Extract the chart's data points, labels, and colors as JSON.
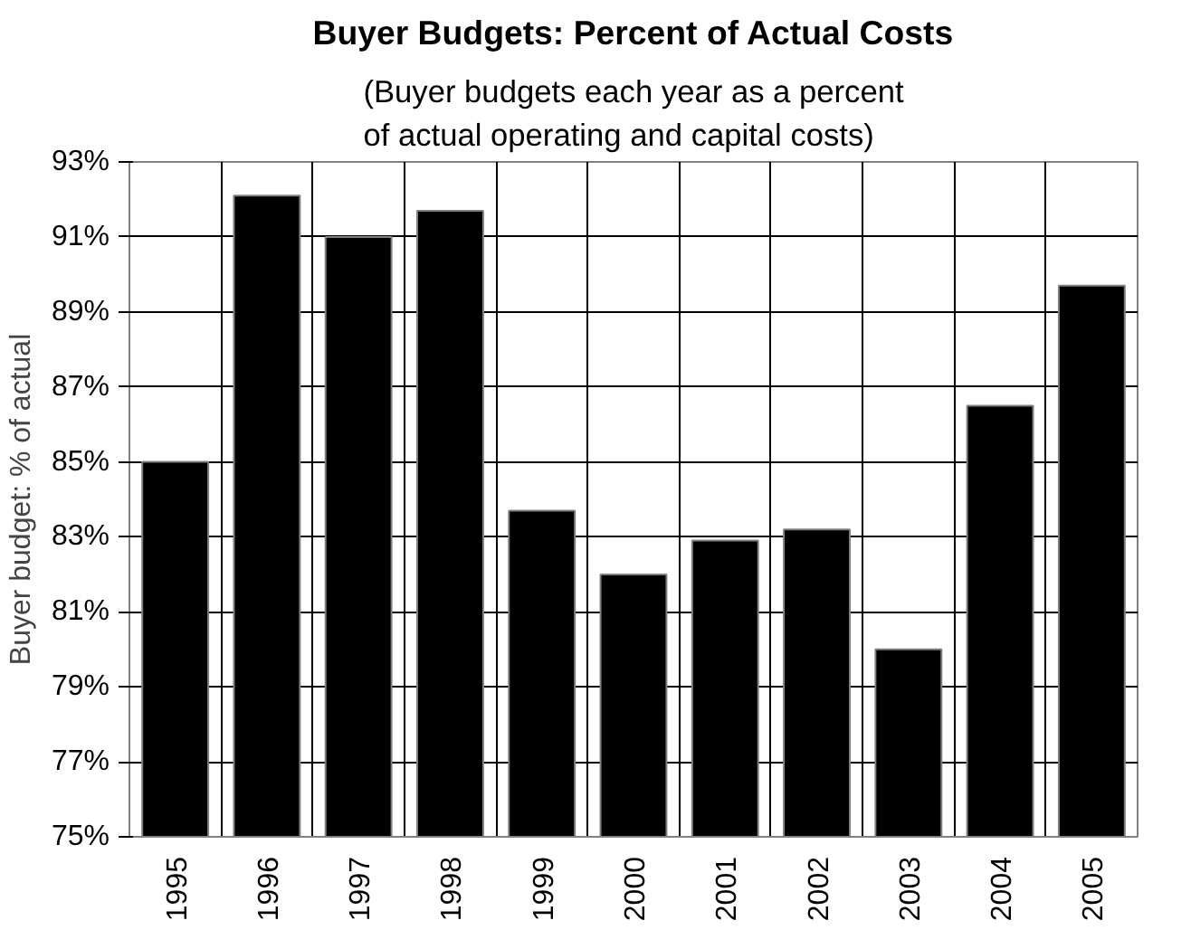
{
  "chart_data": {
    "type": "bar",
    "title": "Buyer Budgets: Percent of Actual Costs",
    "subtitle": "(Buyer budgets each year as a percent\nof actual operating and capital costs)",
    "ylabel": "Buyer budget: % of actual",
    "categories": [
      "1995",
      "1996",
      "1997",
      "1998",
      "1999",
      "2000",
      "2001",
      "2002",
      "2003",
      "2004",
      "2005"
    ],
    "values": [
      85.0,
      92.1,
      91.0,
      91.7,
      83.7,
      82.0,
      82.9,
      83.2,
      80.0,
      86.5,
      89.7
    ],
    "color": "#000000",
    "ylim": [
      75,
      93
    ],
    "yticks": [
      {
        "value": 75,
        "label": "75%"
      },
      {
        "value": 77,
        "label": "77%"
      },
      {
        "value": 79,
        "label": "79%"
      },
      {
        "value": 81,
        "label": "81%"
      },
      {
        "value": 83,
        "label": "83%"
      },
      {
        "value": 85,
        "label": "85%"
      },
      {
        "value": 87,
        "label": "87%"
      },
      {
        "value": 89,
        "label": "89%"
      },
      {
        "value": 91,
        "label": "91%"
      },
      {
        "value": 93,
        "label": "93%"
      }
    ],
    "grid": true
  }
}
